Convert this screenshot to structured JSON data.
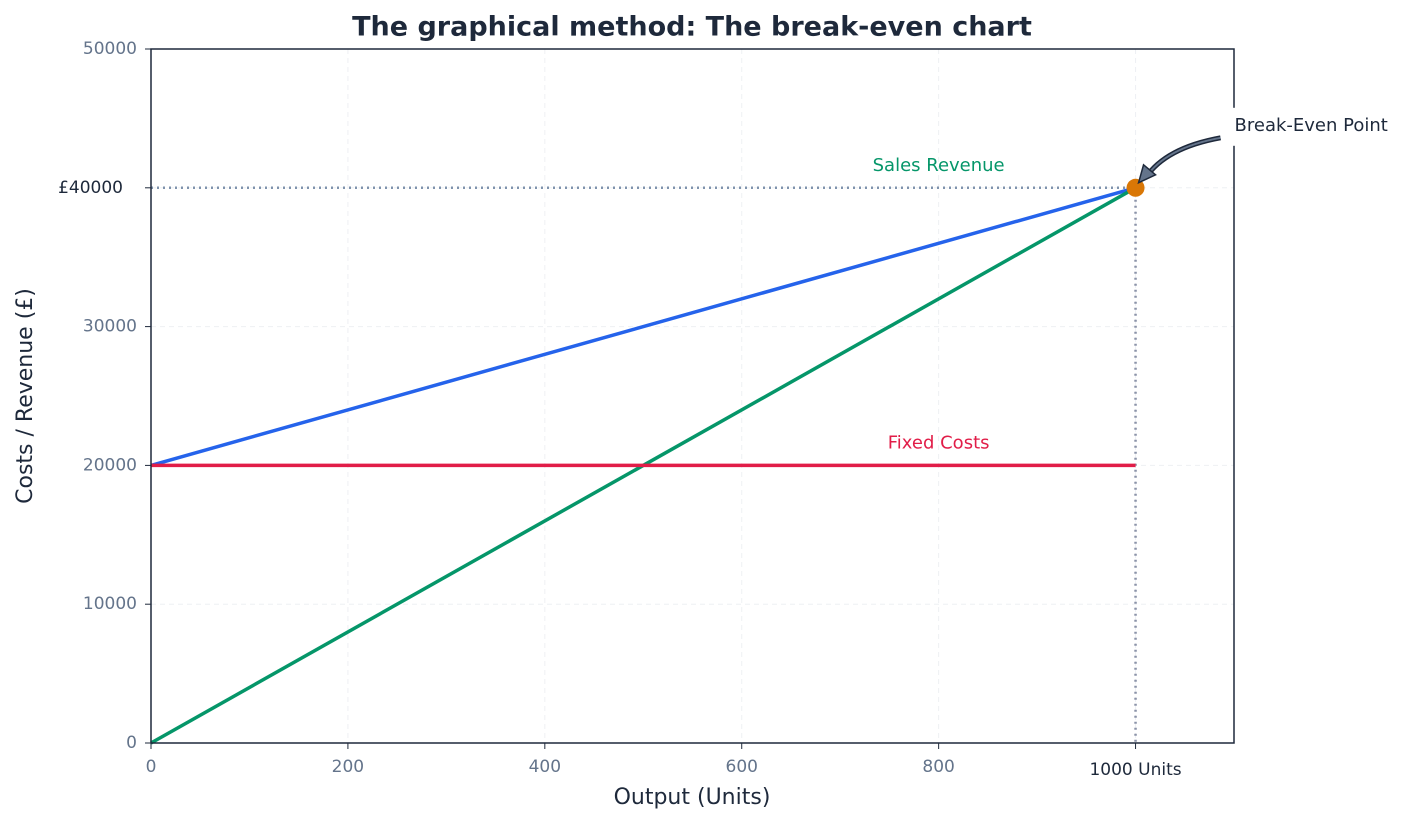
{
  "chart_data": {
    "type": "line",
    "title": "The graphical method: The break-even chart",
    "xlabel": "Output (Units)",
    "ylabel": "Costs / Revenue (£)",
    "x": [
      0,
      1000
    ],
    "series": [
      {
        "color": "#2563eb",
        "values": [
          20000,
          40000
        ]
      },
      {
        "name": "Sales Revenue",
        "color": "#059669",
        "values": [
          0,
          40000
        ]
      },
      {
        "name": "Fixed Costs",
        "color": "#e11d48",
        "values": [
          20000,
          20000
        ]
      }
    ],
    "xlim": [
      0,
      1100
    ],
    "ylim": [
      0,
      50000
    ],
    "xticks": [
      0,
      200,
      400,
      600,
      800,
      {
        "value": 1000,
        "label": "1000 Units"
      }
    ],
    "yticks": [
      0,
      10000,
      20000,
      30000,
      {
        "value": 40000,
        "label": "£40000"
      },
      50000
    ],
    "grid": true,
    "break_even": {
      "x": 1000,
      "y": 40000,
      "label": "Break-Even Point",
      "color": "#d97706"
    }
  }
}
